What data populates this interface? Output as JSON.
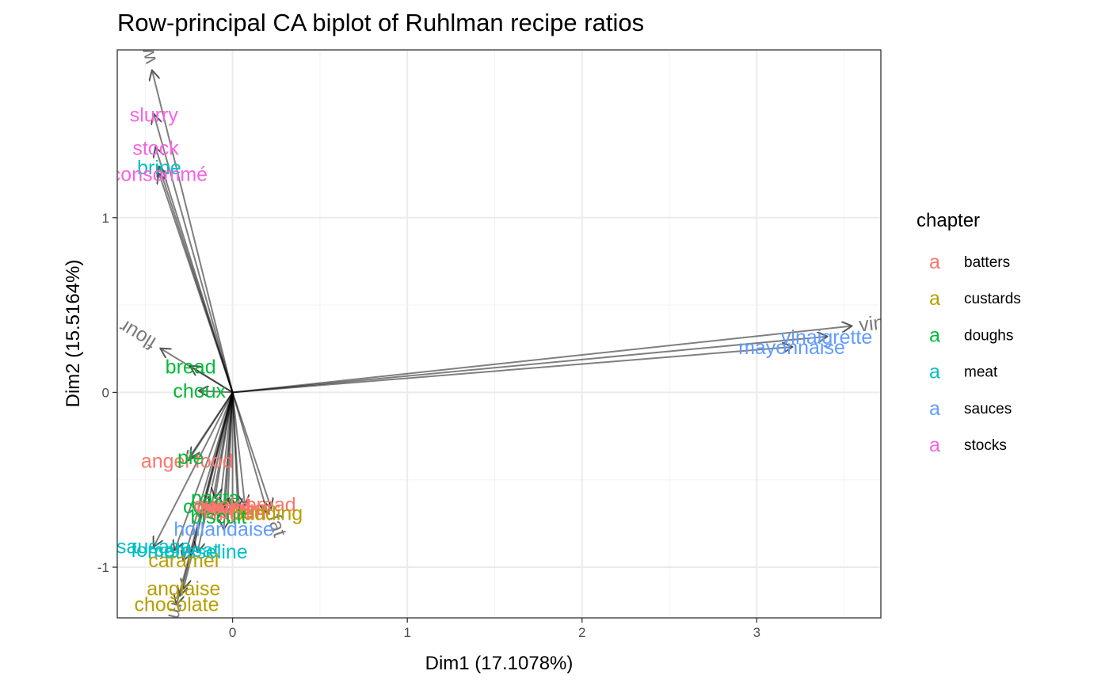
{
  "chart_data": {
    "type": "scatter",
    "title": "Row-principal CA biplot of Ruhlman recipe ratios",
    "xlabel": "Dim1 (17.1078%)",
    "ylabel": "Dim2 (15.5164%)",
    "xlim": [
      -0.66,
      3.71
    ],
    "ylim": [
      -1.29,
      1.96
    ],
    "x_ticks": [
      0,
      1,
      2,
      3
    ],
    "y_ticks": [
      -1,
      0,
      1
    ],
    "x_tick_labels": [
      "0",
      "1",
      "2",
      "3"
    ],
    "y_tick_labels": [
      "-1",
      "0",
      "1"
    ],
    "grid": true,
    "legend": {
      "title": "chapter",
      "position": "right",
      "key_glyph": "a",
      "entries": [
        {
          "name": "batters",
          "color": "#F8766D"
        },
        {
          "name": "custards",
          "color": "#B79F00"
        },
        {
          "name": "doughs",
          "color": "#00BA38"
        },
        {
          "name": "meat",
          "color": "#00BFC4"
        },
        {
          "name": "sauces",
          "color": "#619CFF"
        },
        {
          "name": "stocks",
          "color": "#F564E3"
        }
      ]
    },
    "points": [
      {
        "label": "slurry",
        "chapter": "stocks",
        "x": -0.45,
        "y": 1.59
      },
      {
        "label": "stock",
        "chapter": "stocks",
        "x": -0.44,
        "y": 1.4
      },
      {
        "label": "brine",
        "chapter": "meat",
        "x": -0.42,
        "y": 1.29
      },
      {
        "label": "consommé",
        "chapter": "stocks",
        "x": -0.42,
        "y": 1.25
      },
      {
        "label": "vinaigrette",
        "chapter": "sauces",
        "x": 3.4,
        "y": 0.32
      },
      {
        "label": "mayonnaise",
        "chapter": "sauces",
        "x": 3.2,
        "y": 0.26
      },
      {
        "label": "bread",
        "chapter": "doughs",
        "x": -0.24,
        "y": 0.15
      },
      {
        "label": "choux",
        "chapter": "doughs",
        "x": -0.19,
        "y": 0.01
      },
      {
        "label": "angel food",
        "chapter": "batters",
        "x": -0.26,
        "y": -0.39
      },
      {
        "label": "pie",
        "chapter": "doughs",
        "x": -0.24,
        "y": -0.37
      },
      {
        "label": "pasta",
        "chapter": "doughs",
        "x": -0.1,
        "y": -0.6
      },
      {
        "label": "cookie",
        "chapter": "doughs",
        "x": -0.12,
        "y": -0.65
      },
      {
        "label": "pound",
        "chapter": "batters",
        "x": -0.05,
        "y": -0.65
      },
      {
        "label": "sponge",
        "chapter": "batters",
        "x": 0.0,
        "y": -0.66
      },
      {
        "label": "crepe",
        "chapter": "batters",
        "x": -0.03,
        "y": -0.68
      },
      {
        "label": "popover",
        "chapter": "batters",
        "x": 0.03,
        "y": -0.66
      },
      {
        "label": "muffin",
        "chapter": "batters",
        "x": 0.04,
        "y": -0.69
      },
      {
        "label": "quick bread",
        "chapter": "batters",
        "x": 0.07,
        "y": -0.64
      },
      {
        "label": "pudding",
        "chapter": "custards",
        "x": 0.2,
        "y": -0.69
      },
      {
        "label": "biscuit",
        "chapter": "doughs",
        "x": -0.08,
        "y": -0.71
      },
      {
        "label": "hollandaise",
        "chapter": "sauces",
        "x": -0.05,
        "y": -0.78
      },
      {
        "label": "sausage",
        "chapter": "meat",
        "x": -0.45,
        "y": -0.88
      },
      {
        "label": "forcemeat",
        "chapter": "meat",
        "x": -0.33,
        "y": -0.9
      },
      {
        "label": "mousseline",
        "chapter": "meat",
        "x": -0.2,
        "y": -0.91
      },
      {
        "label": "caramel",
        "chapter": "custards",
        "x": -0.28,
        "y": -0.96
      },
      {
        "label": "anglaise",
        "chapter": "custards",
        "x": -0.28,
        "y": -1.12
      },
      {
        "label": "chocolate",
        "chapter": "custards",
        "x": -0.32,
        "y": -1.21
      }
    ],
    "variables": [
      {
        "label": "water",
        "x": -0.46,
        "y": 1.84
      },
      {
        "label": "vinegar",
        "x": 3.54,
        "y": 0.38
      },
      {
        "label": "flour",
        "x": -0.41,
        "y": 0.25
      },
      {
        "label": "fat",
        "x": 0.22,
        "y": -0.66
      },
      {
        "label": "milk",
        "x": -0.3,
        "y": -1.16
      }
    ]
  }
}
